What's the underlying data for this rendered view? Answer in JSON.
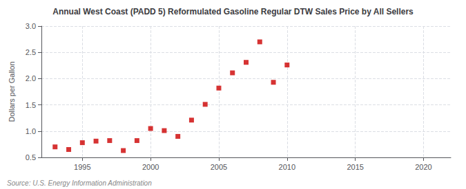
{
  "chart_data": {
    "type": "scatter",
    "title": "Annual West Coast (PADD 5) Reformulated Gasoline Regular DTW Sales Price by All Sellers",
    "ylabel": "Dollars per Gallon",
    "annotations": [
      "Source: U.S. Energy Information Administration"
    ],
    "x": [
      1993,
      1994,
      1995,
      1996,
      1997,
      1998,
      1999,
      2000,
      2001,
      2002,
      2003,
      2004,
      2005,
      2006,
      2007,
      2008,
      2009,
      2010
    ],
    "values": [
      0.7,
      0.65,
      0.78,
      0.81,
      0.82,
      0.63,
      0.82,
      1.05,
      1.01,
      0.9,
      1.21,
      1.51,
      1.82,
      2.11,
      2.31,
      2.7,
      1.93,
      2.26
    ],
    "color": "#cc0000",
    "marker": "square",
    "xlim": [
      1992,
      2022
    ],
    "xticks": [
      1995,
      2000,
      2005,
      2010,
      2015,
      2020
    ],
    "ylim": [
      0.5,
      3.0
    ],
    "yticks": [
      0.5,
      {
        "value": 1,
        "label": "1.0"
      },
      1.5,
      {
        "value": 2,
        "label": "2.0"
      },
      2.5,
      {
        "value": 3,
        "label": "3.0"
      }
    ],
    "grid": true
  }
}
